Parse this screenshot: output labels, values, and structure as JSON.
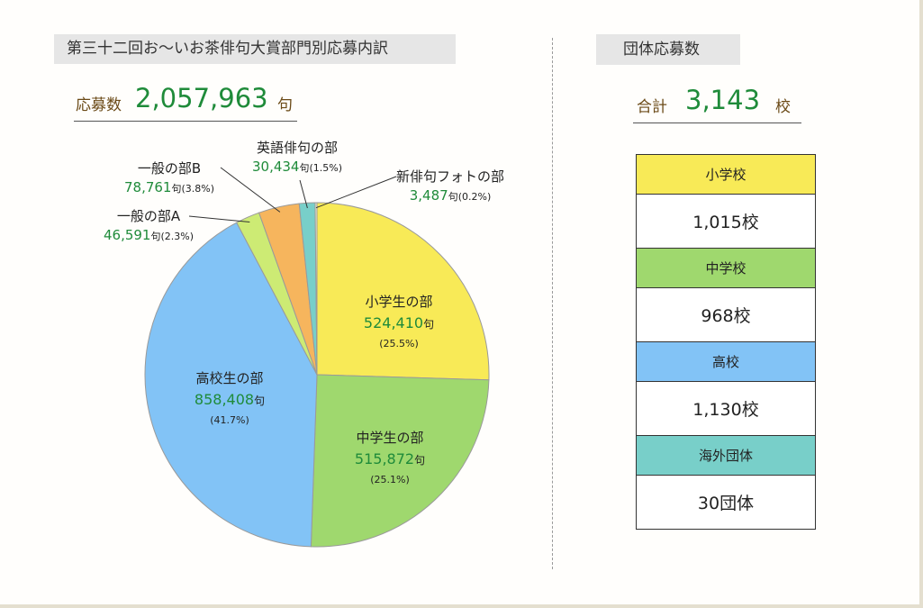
{
  "title": "第三十二回お～いお茶俳句大賞部門別応募内訳",
  "total": {
    "label": "応募数",
    "value": "2,057,963",
    "unit": "句"
  },
  "school_panel": {
    "title": "団体応募数",
    "sum_label": "合計",
    "sum_value": "3,143",
    "sum_unit": "校",
    "rows": [
      {
        "category": "小学校",
        "count": "1,015校",
        "color": "#f8ea57"
      },
      {
        "category": "中学校",
        "count": "968校",
        "color": "#9fd86e"
      },
      {
        "category": "高校",
        "count": "1,130校",
        "color": "#82c3f6"
      },
      {
        "category": "海外団体",
        "count": "30団体",
        "color": "#78cfc9"
      }
    ]
  },
  "chart_data": {
    "type": "pie",
    "unit": "句",
    "slices": [
      {
        "name": "小学生の部",
        "value": 524410,
        "value_text": "524,410",
        "pct": "(25.5%)",
        "color": "#f8ea57"
      },
      {
        "name": "中学生の部",
        "value": 515872,
        "value_text": "515,872",
        "pct": "(25.1%)",
        "color": "#9fd86e"
      },
      {
        "name": "高校生の部",
        "value": 858408,
        "value_text": "858,408",
        "pct": "(41.7%)",
        "color": "#82c3f6"
      },
      {
        "name": "一般の部A",
        "value": 46591,
        "value_text": "46,591",
        "pct": "(2.3%)",
        "color": "#cdeb74"
      },
      {
        "name": "一般の部B",
        "value": 78761,
        "value_text": "78,761",
        "pct": "(3.8%)",
        "color": "#f6b55d"
      },
      {
        "name": "英語俳句の部",
        "value": 30434,
        "value_text": "30,434",
        "pct": "(1.5%)",
        "color": "#78cfc9"
      },
      {
        "name": "新俳句フォトの部",
        "value": 3487,
        "value_text": "3,487",
        "pct": "(0.2%)",
        "color": "#f1f1d6"
      }
    ]
  }
}
